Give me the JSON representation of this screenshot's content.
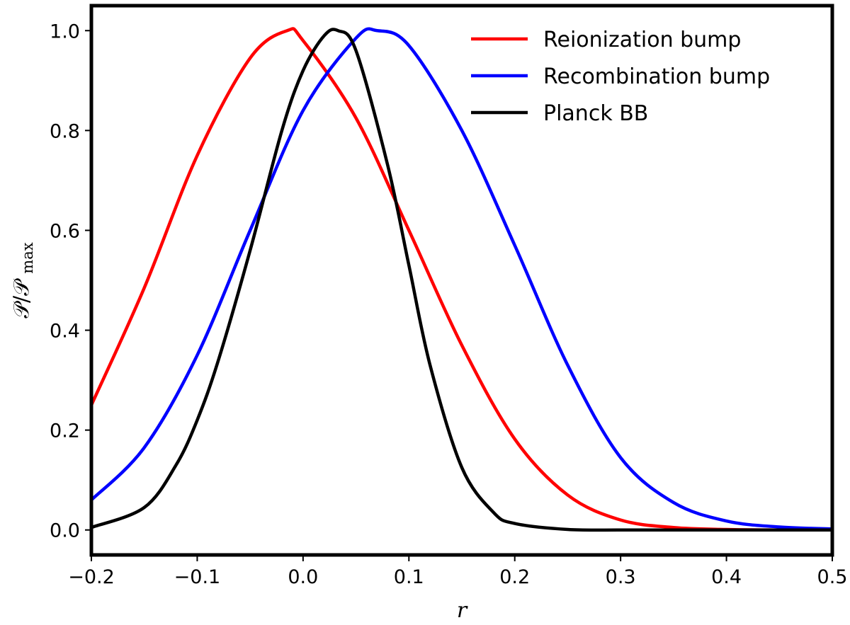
{
  "chart_data": {
    "type": "line",
    "title": "",
    "xlabel": "r",
    "ylabel": {
      "main": "𝒫/𝒫",
      "sub": "max"
    },
    "xlim": [
      -0.2,
      0.5
    ],
    "ylim": [
      -0.05,
      1.05
    ],
    "x_ticks": [
      -0.2,
      -0.1,
      0.0,
      0.1,
      0.2,
      0.3,
      0.4,
      0.5
    ],
    "x_tick_labels": [
      "−0.2",
      "−0.1",
      "0.0",
      "0.1",
      "0.2",
      "0.3",
      "0.4",
      "0.5"
    ],
    "y_ticks": [
      0.0,
      0.2,
      0.4,
      0.6,
      0.8,
      1.0
    ],
    "y_tick_labels": [
      "0.0",
      "0.2",
      "0.4",
      "0.6",
      "0.8",
      "1.0"
    ],
    "grid": false,
    "legend_position": "top-right",
    "series": [
      {
        "name": "Reionization bump",
        "color": "#ff0000",
        "x": [
          -0.2,
          -0.15,
          -0.1,
          -0.05,
          -0.015,
          0.0,
          0.05,
          0.1,
          0.15,
          0.2,
          0.25,
          0.3,
          0.35,
          0.4,
          0.45,
          0.5
        ],
        "y": [
          0.25,
          0.485,
          0.75,
          0.945,
          1.0,
          0.98,
          0.825,
          0.6,
          0.37,
          0.182,
          0.07,
          0.02,
          0.005,
          0.001,
          0.0,
          0.0
        ]
      },
      {
        "name": "Recombination bump",
        "color": "#0000ff",
        "x": [
          -0.2,
          -0.15,
          -0.1,
          -0.05,
          0.0,
          0.05,
          0.07,
          0.1,
          0.15,
          0.2,
          0.25,
          0.3,
          0.35,
          0.4,
          0.45,
          0.5
        ],
        "y": [
          0.06,
          0.165,
          0.35,
          0.6,
          0.84,
          0.985,
          1.0,
          0.97,
          0.8,
          0.57,
          0.33,
          0.145,
          0.055,
          0.018,
          0.006,
          0.002
        ]
      },
      {
        "name": "Planck BB",
        "color": "#000000",
        "x": [
          -0.2,
          -0.15,
          -0.12,
          -0.1,
          -0.08,
          -0.05,
          -0.02,
          0.0,
          0.02,
          0.033,
          0.05,
          0.08,
          0.1,
          0.12,
          0.15,
          0.18,
          0.2,
          0.25,
          0.3,
          0.35,
          0.4,
          0.5
        ],
        "y": [
          0.005,
          0.045,
          0.13,
          0.22,
          0.34,
          0.56,
          0.8,
          0.92,
          0.99,
          1.0,
          0.96,
          0.73,
          0.53,
          0.33,
          0.125,
          0.035,
          0.013,
          0.001,
          0.0,
          0.0,
          0.0,
          0.0
        ]
      }
    ]
  }
}
